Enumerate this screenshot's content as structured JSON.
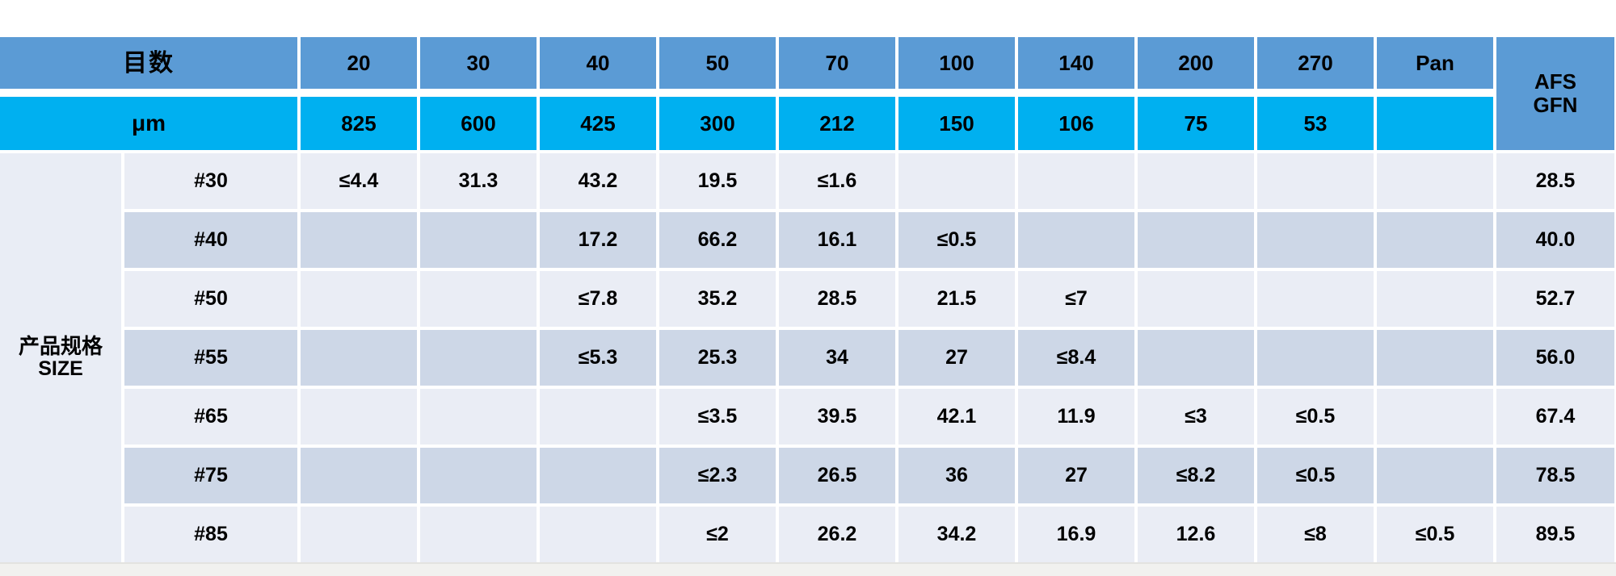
{
  "colors": {
    "page": "#FFFFFF",
    "blue": "#5B9BD5",
    "cyan": "#00B0F0",
    "light": "#EAEDF5",
    "dark": "#CDD7E7",
    "side": "#E9EDF5",
    "strip": "#F1F1EF",
    "text": "#000000"
  },
  "table": {
    "mesh": {
      "label": "目数",
      "columns": [
        "20",
        "30",
        "40",
        "50",
        "70",
        "100",
        "140",
        "200",
        "270",
        "Pan"
      ]
    },
    "micron": {
      "label": "μm",
      "values": [
        "825",
        "600",
        "425",
        "300",
        "212",
        "150",
        "106",
        "75",
        "53",
        ""
      ]
    },
    "afs": {
      "line1": "AFS",
      "line2": "GFN"
    },
    "side": {
      "line1": "产品规格",
      "line2": "SIZE"
    },
    "rows": [
      {
        "size": "#30",
        "values": [
          "≤4.4",
          "31.3",
          "43.2",
          "19.5",
          "≤1.6",
          "",
          "",
          "",
          "",
          ""
        ],
        "afs": "28.5"
      },
      {
        "size": "#40",
        "values": [
          "",
          "",
          "17.2",
          "66.2",
          "16.1",
          "≤0.5",
          "",
          "",
          "",
          ""
        ],
        "afs": "40.0"
      },
      {
        "size": "#50",
        "values": [
          "",
          "",
          "≤7.8",
          "35.2",
          "28.5",
          "21.5",
          "≤7",
          "",
          "",
          ""
        ],
        "afs": "52.7"
      },
      {
        "size": "#55",
        "values": [
          "",
          "",
          "≤5.3",
          "25.3",
          "34",
          "27",
          "≤8.4",
          "",
          "",
          ""
        ],
        "afs": "56.0"
      },
      {
        "size": "#65",
        "values": [
          "",
          "",
          "",
          "≤3.5",
          "39.5",
          "42.1",
          "11.9",
          "≤3",
          "≤0.5",
          ""
        ],
        "afs": "67.4"
      },
      {
        "size": "#75",
        "values": [
          "",
          "",
          "",
          "≤2.3",
          "26.5",
          "36",
          "27",
          "≤8.2",
          "≤0.5",
          ""
        ],
        "afs": "78.5"
      },
      {
        "size": "#85",
        "values": [
          "",
          "",
          "",
          "≤2",
          "26.2",
          "34.2",
          "16.9",
          "12.6",
          "≤8",
          "≤0.5"
        ],
        "afs": "89.5"
      }
    ]
  }
}
